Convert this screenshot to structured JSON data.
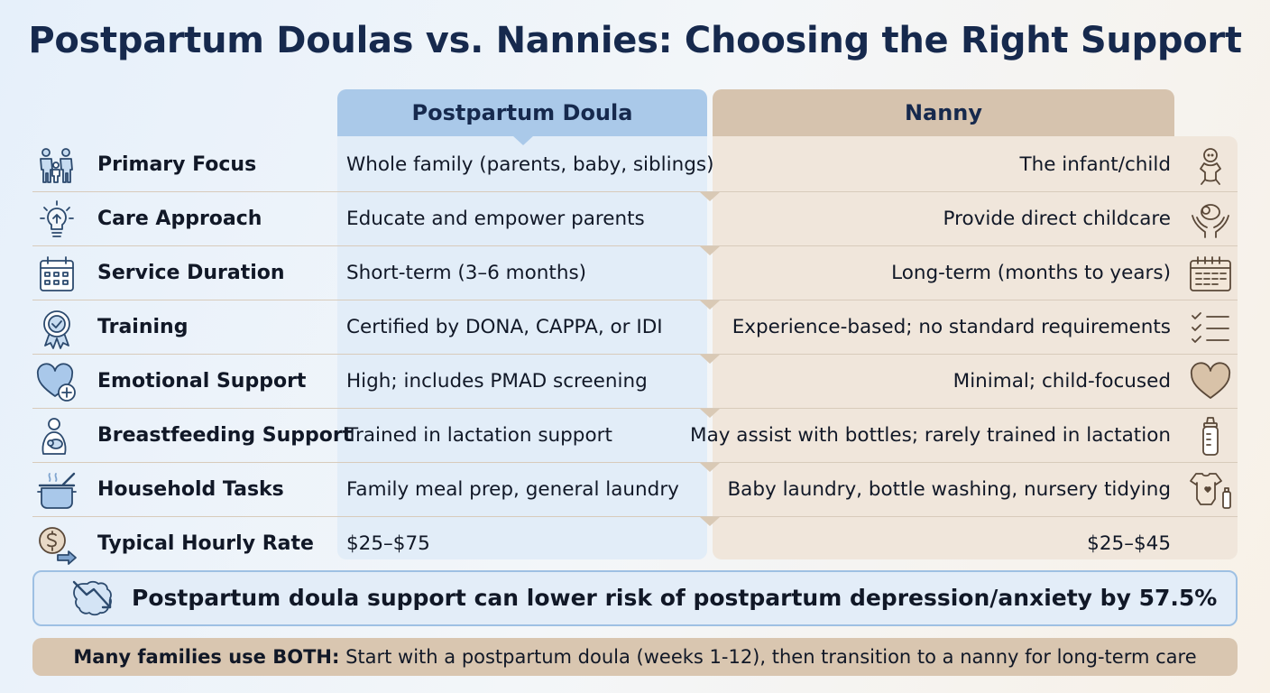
{
  "title": "Postpartum Doulas vs. Nannies: Choosing the Right Support",
  "columns": {
    "doula": "Postpartum Doula",
    "nanny": "Nanny"
  },
  "rows": [
    {
      "label": "Primary Focus",
      "doula": "Whole family (parents, baby, siblings)",
      "nanny": "The infant/child",
      "row_icon": "family-icon",
      "nanny_icon": "baby-icon"
    },
    {
      "label": "Care Approach",
      "doula": "Educate and empower parents",
      "nanny": "Provide direct childcare",
      "row_icon": "lightbulb-icon",
      "nanny_icon": "hands-holding-baby-icon"
    },
    {
      "label": "Service Duration",
      "doula": "Short-term (3–6 months)",
      "nanny": "Long-term (months to years)",
      "row_icon": "calendar-icon",
      "nanny_icon": "calendar-icon"
    },
    {
      "label": "Training",
      "doula": "Certified by DONA, CAPPA, or IDI",
      "nanny": "Experience-based; no standard requirements",
      "row_icon": "award-badge-icon",
      "nanny_icon": "checklist-icon"
    },
    {
      "label": "Emotional Support",
      "doula": "High; includes PMAD screening",
      "nanny": "Minimal; child-focused",
      "row_icon": "heart-plus-icon",
      "nanny_icon": "heart-icon"
    },
    {
      "label": "Breastfeeding Support",
      "doula": "Trained in lactation support",
      "nanny": "May assist with bottles; rarely trained in lactation",
      "row_icon": "mother-nursing-icon",
      "nanny_icon": "baby-bottle-icon"
    },
    {
      "label": "Household Tasks",
      "doula": "Family meal prep, general laundry",
      "nanny": "Baby laundry, bottle washing, nursery tidying",
      "row_icon": "cooking-pot-icon",
      "nanny_icon": "onesie-bottle-icon"
    },
    {
      "label": "Typical Hourly Rate",
      "doula": "$25–$75",
      "nanny": "$25–$45",
      "row_icon": "dollar-coin-icon",
      "nanny_icon": ""
    }
  ],
  "stat": {
    "text": "Postpartum doula support can lower risk of postpartum depression/anxiety by 57.5%",
    "icon": "downtrend-brain-icon"
  },
  "tip": {
    "lead": "Many families use BOTH:",
    "text": " Start with a postpartum doula (weeks 1-12), then transition to a nanny for long-term care"
  },
  "colors": {
    "title": "#16294d",
    "doula_header": "#aac9e9",
    "nanny_header": "#d6c3ae",
    "doula_column": "#e2edf8",
    "nanny_column": "#f0e6db",
    "tip_bar": "#d9c6b0",
    "stat_border": "#9ec0e3",
    "icon_blue": "#4a78b0",
    "icon_brown": "#8b6d50"
  }
}
